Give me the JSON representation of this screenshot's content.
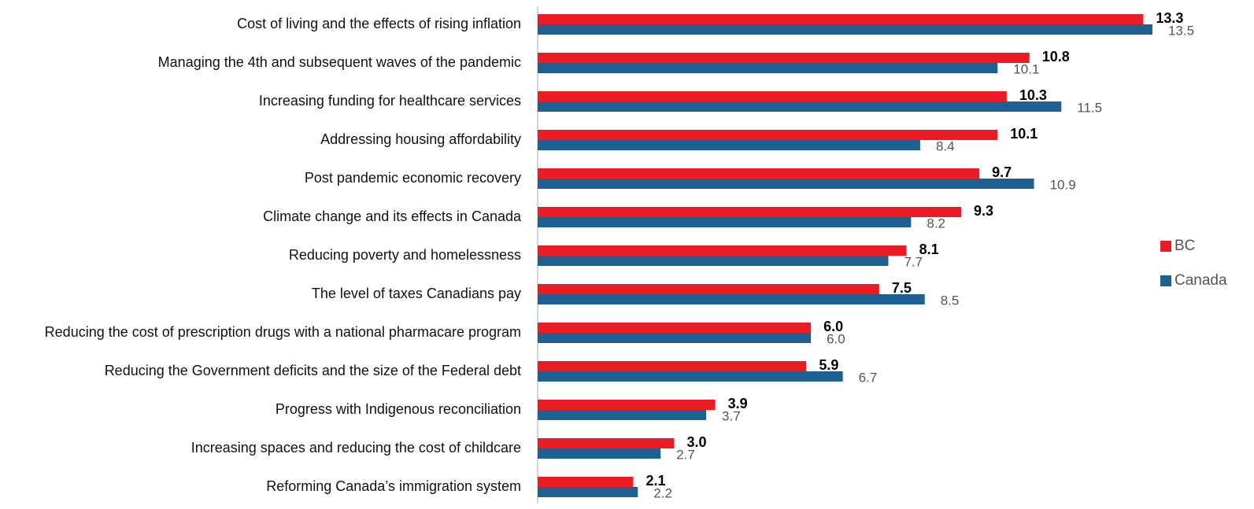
{
  "chart_data": {
    "type": "hbar",
    "categories": [
      "Cost of living and the effects of rising inflation",
      "Managing the 4th and subsequent waves of the pandemic",
      "Increasing funding for healthcare services",
      "Addressing housing affordability",
      "Post pandemic economic recovery",
      "Climate change and its effects in Canada",
      "Reducing poverty and homelessness",
      "The level of taxes Canadians pay",
      "Reducing the cost of prescription drugs with a national pharmacare program",
      "Reducing the Government deficits and the size of the Federal debt",
      "Progress with Indigenous reconciliation",
      "Increasing spaces and reducing the cost of childcare",
      "Reforming Canada’s immigration system"
    ],
    "series": [
      {
        "name": "BC",
        "color": "#ed1c24",
        "values": [
          13.3,
          10.8,
          10.3,
          10.1,
          9.7,
          9.3,
          8.1,
          7.5,
          6.0,
          5.9,
          3.9,
          3.0,
          2.1
        ],
        "value_labels": [
          "13.3",
          "10.8",
          "10.3",
          "10.1",
          "9.7",
          "9.3",
          "8.1",
          "7.5",
          "6.0",
          "5.9",
          "3.9",
          "3.0",
          "2.1"
        ]
      },
      {
        "name": "Canada",
        "color": "#1f6092",
        "values": [
          13.5,
          10.1,
          11.5,
          8.4,
          10.9,
          8.2,
          7.7,
          8.5,
          6.0,
          6.7,
          3.7,
          2.7,
          2.2
        ],
        "value_labels": [
          "13.5",
          "10.1",
          "11.5",
          "8.4",
          "10.9",
          "8.2",
          "7.7",
          "8.5",
          "6.0",
          "6.7",
          "3.7",
          "2.7",
          "2.2"
        ]
      }
    ],
    "xlim": [
      0,
      15
    ],
    "legend": "right"
  }
}
